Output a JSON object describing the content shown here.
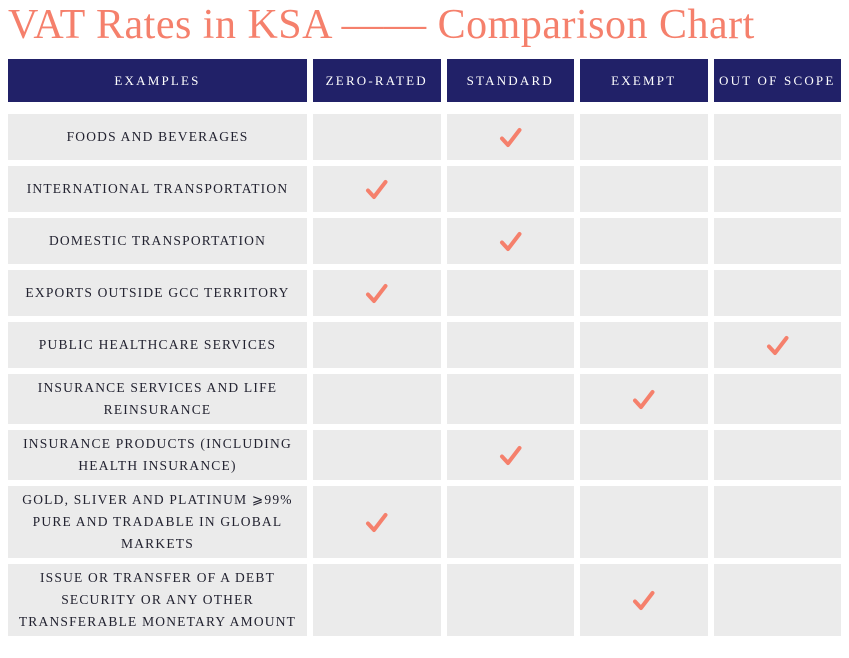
{
  "title": "VAT Rates in KSA —— Comparison Chart",
  "colors": {
    "accent_coral": "#F5806C",
    "header_navy": "#212168",
    "cell_gray": "#EBEBEB",
    "label_text": "#222230",
    "header_text": "#FFFFFF"
  },
  "icons": {
    "check": "check-icon"
  },
  "table": {
    "columns": [
      "EXAMPLES",
      "ZERO-RATED",
      "STANDARD",
      "EXEMPT",
      "OUT OF SCOPE"
    ],
    "rows": [
      {
        "example": "FOODS AND BEVERAGES",
        "checked": "STANDARD"
      },
      {
        "example": "INTERNATIONAL TRANSPORTATION",
        "checked": "ZERO-RATED"
      },
      {
        "example": "DOMESTIC TRANSPORTATION",
        "checked": "STANDARD"
      },
      {
        "example": "EXPORTS OUTSIDE GCC TERRITORY",
        "checked": "ZERO-RATED"
      },
      {
        "example": "PUBLIC HEALTHCARE SERVICES",
        "checked": "OUT OF SCOPE"
      },
      {
        "example": "INSURANCE SERVICES AND LIFE REINSURANCE",
        "checked": "EXEMPT"
      },
      {
        "example": "INSURANCE PRODUCTS (INCLUDING HEALTH INSURANCE)",
        "checked": "STANDARD"
      },
      {
        "example": "GOLD, SLIVER AND PLATINUM ⩾99% PURE AND TRADABLE IN GLOBAL MARKETS",
        "checked": "ZERO-RATED"
      },
      {
        "example": "ISSUE OR TRANSFER OF A DEBT SECURITY OR ANY OTHER TRANSFERABLE MONETARY AMOUNT",
        "checked": "EXEMPT"
      }
    ]
  },
  "chart_data": {
    "type": "table",
    "title": "VAT Rates in KSA —— Comparison Chart",
    "columns": [
      "EXAMPLES",
      "ZERO-RATED",
      "STANDARD",
      "EXEMPT",
      "OUT OF SCOPE"
    ],
    "rows": [
      {
        "example": "FOODS AND BEVERAGES",
        "zero_rated": false,
        "standard": true,
        "exempt": false,
        "out_of_scope": false
      },
      {
        "example": "INTERNATIONAL TRANSPORTATION",
        "zero_rated": true,
        "standard": false,
        "exempt": false,
        "out_of_scope": false
      },
      {
        "example": "DOMESTIC TRANSPORTATION",
        "zero_rated": false,
        "standard": true,
        "exempt": false,
        "out_of_scope": false
      },
      {
        "example": "EXPORTS OUTSIDE GCC TERRITORY",
        "zero_rated": true,
        "standard": false,
        "exempt": false,
        "out_of_scope": false
      },
      {
        "example": "PUBLIC HEALTHCARE SERVICES",
        "zero_rated": false,
        "standard": false,
        "exempt": false,
        "out_of_scope": true
      },
      {
        "example": "INSURANCE SERVICES AND LIFE REINSURANCE",
        "zero_rated": false,
        "standard": false,
        "exempt": true,
        "out_of_scope": false
      },
      {
        "example": "INSURANCE PRODUCTS (INCLUDING HEALTH INSURANCE)",
        "zero_rated": false,
        "standard": true,
        "exempt": false,
        "out_of_scope": false
      },
      {
        "example": "GOLD, SLIVER AND PLATINUM ⩾99% PURE AND TRADABLE IN GLOBAL MARKETS",
        "zero_rated": true,
        "standard": false,
        "exempt": false,
        "out_of_scope": false
      },
      {
        "example": "ISSUE OR TRANSFER OF A DEBT SECURITY OR ANY OTHER TRANSFERABLE MONETARY AMOUNT",
        "zero_rated": false,
        "standard": false,
        "exempt": true,
        "out_of_scope": false
      }
    ]
  }
}
